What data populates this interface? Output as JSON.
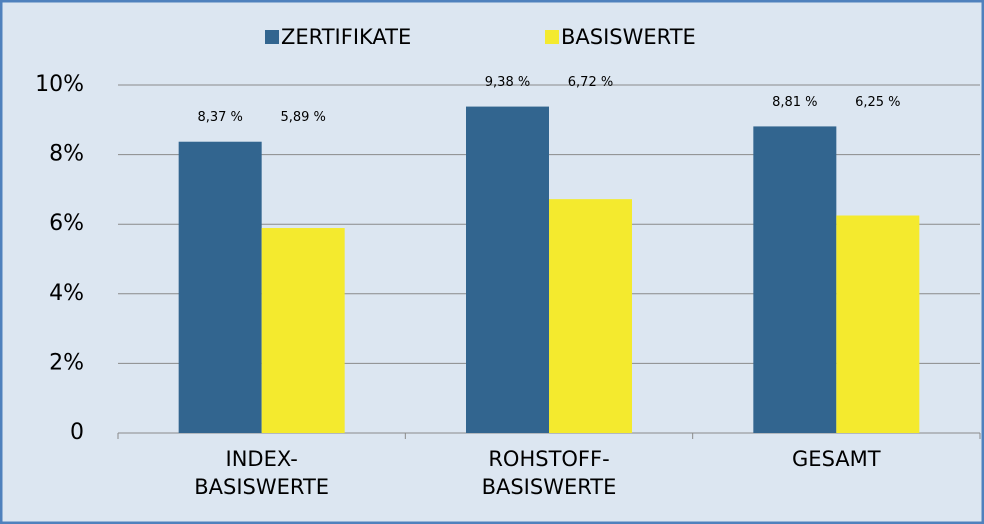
{
  "chart_data": {
    "type": "bar",
    "categories": [
      "INDEX-BASISWERTE",
      "ROHSTOFF-BASISWERTE",
      "GESAMT"
    ],
    "series": [
      {
        "name": "ZERTIFIKATE",
        "color": "#32658f",
        "values": [
          8.37,
          9.38,
          8.81
        ],
        "value_labels": [
          "8,37 %",
          "9,38 %",
          "8,81 %"
        ]
      },
      {
        "name": "BASISWERTE",
        "color": "#f4ea2e",
        "values": [
          5.89,
          6.72,
          6.25
        ],
        "value_labels": [
          "5,89 %",
          "6,72 %",
          "6,25 %"
        ]
      }
    ],
    "ylim": [
      0,
      10
    ],
    "yticks": [
      0,
      {
        "value": 2,
        "label": "2%"
      },
      {
        "value": 4,
        "label": "4%"
      },
      {
        "value": 6,
        "label": "6%"
      },
      {
        "value": 8,
        "label": "8%"
      },
      {
        "value": 10,
        "label": "10%"
      }
    ],
    "grid": true,
    "legend": "top"
  }
}
